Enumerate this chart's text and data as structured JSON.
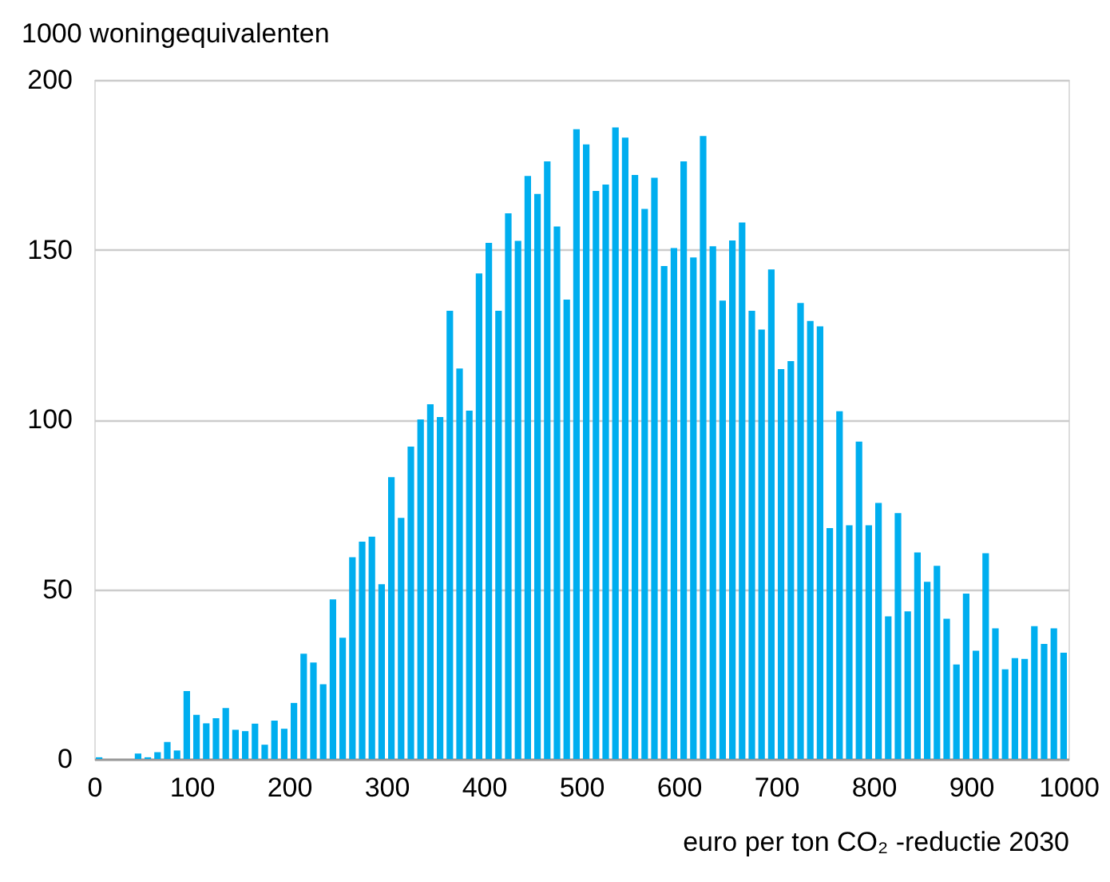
{
  "chart_data": {
    "type": "histogram",
    "ylabel": "1000  woningequivalenten",
    "xlabel": "euro per ton CO₂ -reductie 2030",
    "bins": [
      0,
      10,
      20,
      30,
      40,
      50,
      60,
      70,
      80,
      90,
      100,
      110,
      120,
      130,
      140,
      150,
      160,
      170,
      180,
      190,
      200,
      210,
      220,
      230,
      240,
      250,
      260,
      270,
      280,
      290,
      300,
      310,
      320,
      330,
      340,
      350,
      360,
      370,
      380,
      390,
      400,
      410,
      420,
      430,
      440,
      450,
      460,
      470,
      480,
      490,
      500,
      510,
      520,
      530,
      540,
      550,
      560,
      570,
      580,
      590,
      600,
      610,
      620,
      630,
      640,
      650,
      660,
      670,
      680,
      690,
      700,
      710,
      720,
      730,
      740,
      750,
      760,
      770,
      780,
      790,
      800,
      810,
      820,
      830,
      840,
      850,
      860,
      870,
      880,
      890,
      900,
      910,
      920,
      930,
      940,
      950,
      960,
      970,
      980,
      990,
      1000
    ],
    "values": [
      0.5,
      0,
      0,
      0,
      1.6,
      0.5,
      2,
      5,
      2.5,
      20,
      13,
      10.5,
      12,
      15,
      8.6,
      8.2,
      10.4,
      4.2,
      11.3,
      8.9,
      16.5,
      31,
      28.4,
      22,
      47,
      35.7,
      59.4,
      64,
      65.5,
      51.5,
      83,
      71,
      92,
      100,
      104.5,
      100.7,
      132,
      115,
      102.6,
      143,
      152,
      132,
      160.7,
      152.6,
      171.7,
      166.4,
      176,
      156.8,
      135.3,
      185.5,
      181,
      167.3,
      169.2,
      186,
      183,
      172,
      162,
      171.2,
      145.2,
      150.5,
      176,
      147.7,
      183.5,
      151,
      135,
      152.7,
      158,
      132,
      126.5,
      144.2,
      114.8,
      117.2,
      134.3,
      129,
      127.4,
      68,
      102.4,
      68.8,
      93.5,
      68.8,
      75.4,
      42,
      72.4,
      43.5,
      60.8,
      52.2,
      56.9,
      41.3,
      27.8,
      48.7,
      31.9,
      60.6,
      38.5,
      26.4,
      29.7,
      29.5,
      39.1,
      33.9,
      38.5,
      31.3
    ],
    "color": "#00aeef",
    "xlim": [
      0,
      1000
    ],
    "xticks": [
      0,
      100,
      200,
      300,
      400,
      500,
      600,
      700,
      800,
      900,
      1000
    ],
    "ylim": [
      0,
      200
    ],
    "yticks": [
      0,
      50,
      100,
      150,
      200
    ],
    "grid": "y"
  }
}
